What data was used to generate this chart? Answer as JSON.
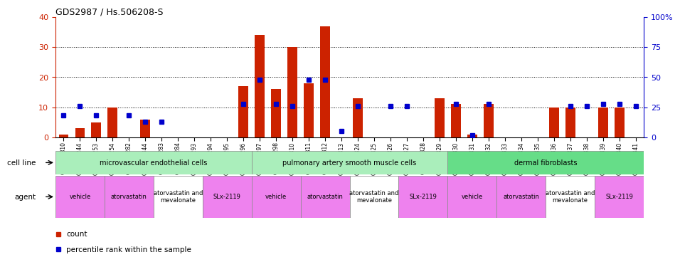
{
  "title": "GDS2987 / Hs.506208-S",
  "samples": [
    "GSM214810",
    "GSM215244",
    "GSM215253",
    "GSM215254",
    "GSM215282",
    "GSM215344",
    "GSM215283",
    "GSM215284",
    "GSM215293",
    "GSM215294",
    "GSM215295",
    "GSM215296",
    "GSM215297",
    "GSM215298",
    "GSM215310",
    "GSM215311",
    "GSM215312",
    "GSM215313",
    "GSM215324",
    "GSM215325",
    "GSM215326",
    "GSM215327",
    "GSM215328",
    "GSM215329",
    "GSM215330",
    "GSM215331",
    "GSM215332",
    "GSM215333",
    "GSM215334",
    "GSM215335",
    "GSM215336",
    "GSM215337",
    "GSM215338",
    "GSM215339",
    "GSM215340",
    "GSM215341"
  ],
  "counts": [
    1,
    3,
    5,
    10,
    0,
    6,
    0,
    0,
    0,
    0,
    0,
    17,
    34,
    16,
    30,
    18,
    37,
    0,
    13,
    0,
    0,
    0,
    0,
    13,
    11,
    1,
    11,
    0,
    0,
    0,
    10,
    10,
    0,
    10,
    10,
    0
  ],
  "percentile_ranks": [
    18,
    26,
    18,
    0,
    18,
    13,
    13,
    0,
    0,
    0,
    0,
    28,
    48,
    28,
    26,
    48,
    48,
    5,
    26,
    0,
    26,
    26,
    0,
    0,
    28,
    2,
    28,
    0,
    0,
    0,
    0,
    26,
    26,
    28,
    28,
    26
  ],
  "cell_lines": [
    {
      "label": "microvascular endothelial cells",
      "start": 0,
      "end": 12,
      "color": "#aaeebb"
    },
    {
      "label": "pulmonary artery smooth muscle cells",
      "start": 12,
      "end": 24,
      "color": "#aaeebb"
    },
    {
      "label": "dermal fibroblasts",
      "start": 24,
      "end": 36,
      "color": "#66dd88"
    }
  ],
  "agents": [
    {
      "label": "vehicle",
      "start": 0,
      "end": 3,
      "color": "#ee82ee"
    },
    {
      "label": "atorvastatin",
      "start": 3,
      "end": 6,
      "color": "#ee82ee"
    },
    {
      "label": "atorvastatin and\nmevalonate",
      "start": 6,
      "end": 9,
      "color": "#ffffff"
    },
    {
      "label": "SLx-2119",
      "start": 9,
      "end": 12,
      "color": "#ee82ee"
    },
    {
      "label": "vehicle",
      "start": 12,
      "end": 15,
      "color": "#ee82ee"
    },
    {
      "label": "atorvastatin",
      "start": 15,
      "end": 18,
      "color": "#ee82ee"
    },
    {
      "label": "atorvastatin and\nmevalonate",
      "start": 18,
      "end": 21,
      "color": "#ffffff"
    },
    {
      "label": "SLx-2119",
      "start": 21,
      "end": 24,
      "color": "#ee82ee"
    },
    {
      "label": "vehicle",
      "start": 24,
      "end": 27,
      "color": "#ee82ee"
    },
    {
      "label": "atorvastatin",
      "start": 27,
      "end": 30,
      "color": "#ee82ee"
    },
    {
      "label": "atorvastatin and\nmevalonate",
      "start": 30,
      "end": 33,
      "color": "#ffffff"
    },
    {
      "label": "SLx-2119",
      "start": 33,
      "end": 36,
      "color": "#ee82ee"
    }
  ],
  "bar_color": "#cc2200",
  "dot_color": "#0000cc",
  "ylim_left": [
    0,
    40
  ],
  "ylim_right": [
    0,
    100
  ],
  "yticks_left": [
    0,
    10,
    20,
    30,
    40
  ],
  "yticks_right": [
    0,
    25,
    50,
    75,
    100
  ],
  "ytick_labels_right": [
    "0",
    "25",
    "50",
    "75",
    "100%"
  ],
  "left_axis_color": "#cc2200",
  "right_axis_color": "#0000cc"
}
